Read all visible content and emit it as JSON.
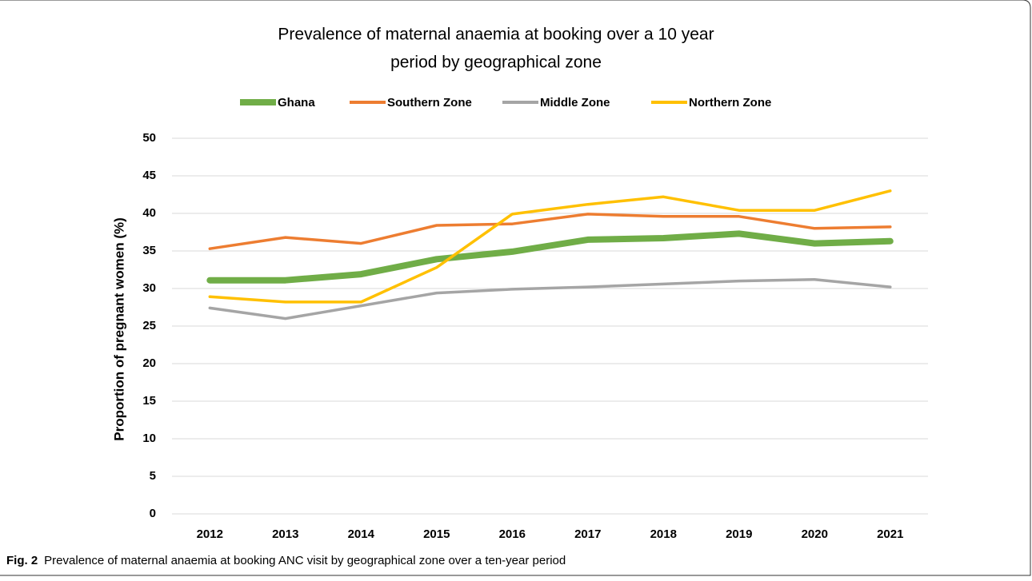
{
  "chart_data": {
    "type": "line",
    "title": "Prevalence of maternal anaemia at booking over a 10 year",
    "subtitle": "period by geographical zone",
    "y_label": "Proportion of pregnant women (%)",
    "categories": [
      "2012",
      "2013",
      "2014",
      "2015",
      "2016",
      "2017",
      "2018",
      "2019",
      "2020",
      "2021"
    ],
    "series": [
      {
        "name": "Ghana",
        "color": "#70ad47",
        "values": [
          31.1,
          31.1,
          31.9,
          33.9,
          34.9,
          36.5,
          36.7,
          37.3,
          36.0,
          36.3
        ]
      },
      {
        "name": "Southern Zone",
        "color": "#ed7d31",
        "values": [
          35.3,
          36.8,
          36.0,
          38.4,
          38.6,
          39.9,
          39.6,
          39.6,
          38.0,
          38.2
        ]
      },
      {
        "name": "Middle Zone",
        "color": "#a5a5a5",
        "values": [
          27.4,
          26.0,
          27.7,
          29.4,
          29.9,
          30.2,
          30.6,
          31.0,
          31.2,
          30.2
        ]
      },
      {
        "name": "Northern Zone",
        "color": "#ffc000",
        "values": [
          28.9,
          28.2,
          28.2,
          32.8,
          39.9,
          41.2,
          42.2,
          40.4,
          40.4,
          43.0
        ]
      }
    ],
    "ylim": [
      0,
      50
    ],
    "yticks": [
      0,
      5,
      10,
      15,
      20,
      25,
      30,
      35,
      40,
      45,
      50
    ],
    "grid": true,
    "legend": "top",
    "caption_label": "Fig. 2",
    "caption": "Prevalence of maternal anaemia at booking ANC visit by geographical zone over a ten-year period"
  }
}
